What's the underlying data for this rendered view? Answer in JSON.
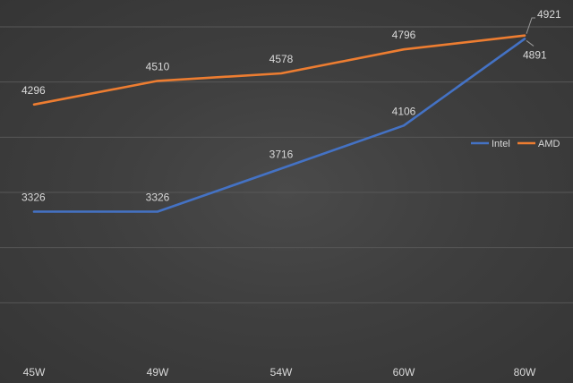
{
  "chart_data": {
    "type": "line",
    "title": "",
    "xlabel": "",
    "ylabel": "",
    "categories": [
      "45W",
      "49W",
      "54W",
      "60W",
      "80W"
    ],
    "series": [
      {
        "name": "Intel",
        "color": "#4472c4",
        "values": [
          3326,
          3326,
          3716,
          4106,
          4891
        ]
      },
      {
        "name": "AMD",
        "color": "#ed7d31",
        "values": [
          4296,
          4510,
          4578,
          4796,
          4921
        ]
      }
    ],
    "ylim": [
      2000,
      5000
    ],
    "grid": true,
    "legend": "right"
  }
}
